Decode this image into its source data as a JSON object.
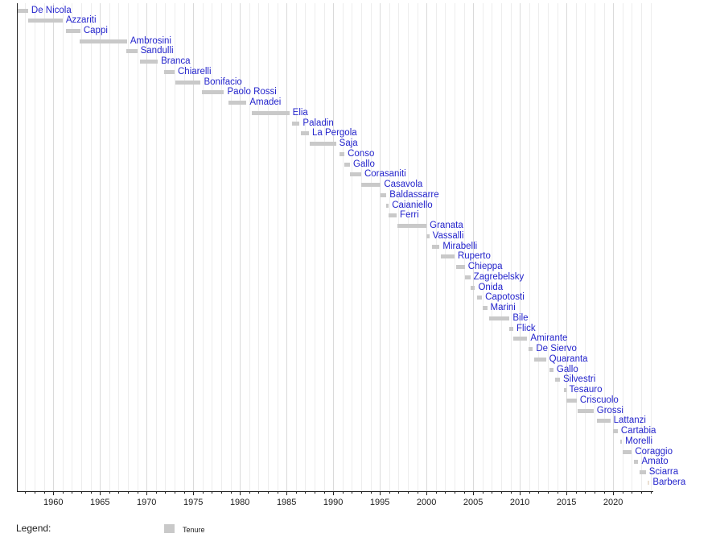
{
  "chart_data": {
    "type": "bar",
    "variant": "horizontal-gantt-timeline",
    "title": "",
    "xlabel": "",
    "ylabel": "",
    "grid": true,
    "legend_position": "bottom-left",
    "legend": {
      "title": "Legend:",
      "items": [
        {
          "label": "Tenure",
          "color": "#c9c9c9"
        }
      ]
    },
    "x_axis": {
      "min": 1956.1,
      "max": 2024.3,
      "major_ticks": [
        1960,
        1965,
        1970,
        1975,
        1980,
        1985,
        1990,
        1995,
        2000,
        2005,
        2010,
        2015,
        2020
      ],
      "minor_tick_interval": 1,
      "minor_tick_start": 1957,
      "minor_tick_end": 2024
    },
    "style": {
      "bar_color": "#c9c9c9",
      "label_color": "#2424cc",
      "grid_minor_color": "#ededed",
      "grid_major_color": "#dadada",
      "axis_color": "#222222",
      "tick_label_color": "#1c1c1c",
      "legend_text_color": "#1c1c1c"
    },
    "people": [
      {
        "name": "De Nicola",
        "start": 1956.1,
        "end": 1957.3
      },
      {
        "name": "Azzariti",
        "start": 1957.3,
        "end": 1961.0
      },
      {
        "name": "Cappi",
        "start": 1961.4,
        "end": 1962.9
      },
      {
        "name": "Ambrosini",
        "start": 1962.8,
        "end": 1967.9
      },
      {
        "name": "Sandulli",
        "start": 1967.8,
        "end": 1969.0
      },
      {
        "name": "Branca",
        "start": 1969.3,
        "end": 1971.2
      },
      {
        "name": "Chiarelli",
        "start": 1971.9,
        "end": 1973.0
      },
      {
        "name": "Bonifacio",
        "start": 1973.1,
        "end": 1975.8
      },
      {
        "name": "Paolo Rossi",
        "start": 1975.9,
        "end": 1978.3
      },
      {
        "name": "Amadei",
        "start": 1978.8,
        "end": 1980.7
      },
      {
        "name": "Elia",
        "start": 1981.3,
        "end": 1985.3
      },
      {
        "name": "Paladin",
        "start": 1985.6,
        "end": 1986.4
      },
      {
        "name": "La Pergola",
        "start": 1986.5,
        "end": 1987.4
      },
      {
        "name": "Saja",
        "start": 1987.5,
        "end": 1990.3
      },
      {
        "name": "Conso",
        "start": 1990.7,
        "end": 1991.2
      },
      {
        "name": "Gallo",
        "start": 1991.2,
        "end": 1991.8
      },
      {
        "name": "Corasaniti",
        "start": 1991.8,
        "end": 1993.0
      },
      {
        "name": "Casavola",
        "start": 1993.0,
        "end": 1995.1
      },
      {
        "name": "Baldassarre",
        "start": 1995.1,
        "end": 1995.7
      },
      {
        "name": "Caianiello",
        "start": 1995.7,
        "end": 1995.95
      },
      {
        "name": "Ferri",
        "start": 1995.95,
        "end": 1996.8
      },
      {
        "name": "Granata",
        "start": 1996.9,
        "end": 2000.0
      },
      {
        "name": "Vassalli",
        "start": 2000.0,
        "end": 2000.3
      },
      {
        "name": "Mirabelli",
        "start": 2000.6,
        "end": 2001.4
      },
      {
        "name": "Ruperto",
        "start": 2001.5,
        "end": 2003.0
      },
      {
        "name": "Chieppa",
        "start": 2003.2,
        "end": 2004.1
      },
      {
        "name": "Zagrebelsky",
        "start": 2004.1,
        "end": 2004.7
      },
      {
        "name": "Onida",
        "start": 2004.75,
        "end": 2005.2
      },
      {
        "name": "Capotosti",
        "start": 2005.4,
        "end": 2005.95
      },
      {
        "name": "Marini",
        "start": 2006.0,
        "end": 2006.5
      },
      {
        "name": "Bile",
        "start": 2006.7,
        "end": 2008.9
      },
      {
        "name": "Flick",
        "start": 2008.9,
        "end": 2009.3
      },
      {
        "name": "Amirante",
        "start": 2009.3,
        "end": 2010.8
      },
      {
        "name": "De Siervo",
        "start": 2010.9,
        "end": 2011.4
      },
      {
        "name": "Quaranta",
        "start": 2011.5,
        "end": 2012.8
      },
      {
        "name": "Gallo",
        "start": 2013.2,
        "end": 2013.6
      },
      {
        "name": "Silvestri",
        "start": 2013.8,
        "end": 2014.3
      },
      {
        "name": "Tesauro",
        "start": 2014.7,
        "end": 2014.95
      },
      {
        "name": "Criscuolo",
        "start": 2014.95,
        "end": 2016.1
      },
      {
        "name": "Grossi",
        "start": 2016.2,
        "end": 2017.9
      },
      {
        "name": "Lattanzi",
        "start": 2018.3,
        "end": 2019.7
      },
      {
        "name": "Cartabia",
        "start": 2019.95,
        "end": 2020.5
      },
      {
        "name": "Morelli",
        "start": 2020.8,
        "end": 2020.95
      },
      {
        "name": "Coraggio",
        "start": 2021.0,
        "end": 2022.0
      },
      {
        "name": "Amato",
        "start": 2022.2,
        "end": 2022.7
      },
      {
        "name": "Sciarra",
        "start": 2022.8,
        "end": 2023.5
      },
      {
        "name": "Barbera",
        "start": 2023.7,
        "end": 2023.9,
        "color": "#eadfd2"
      }
    ]
  }
}
